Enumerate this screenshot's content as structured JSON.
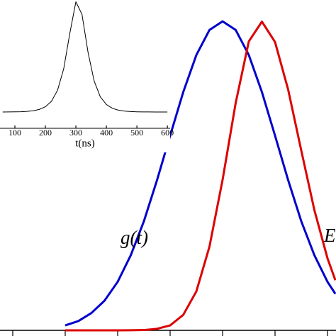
{
  "chart_data": [
    {
      "type": "line",
      "x": [
        1.0,
        1.25,
        1.5,
        1.75,
        2.0,
        2.25,
        2.5,
        2.75,
        3.0,
        3.25,
        3.5,
        3.75,
        4.0,
        4.25,
        4.5,
        4.75,
        5.0,
        5.25,
        5.5,
        5.75,
        6.0,
        6.15
      ],
      "series": [
        {
          "name": "g(t)",
          "color": "#0000cc",
          "values": [
            0.016,
            0.03,
            0.056,
            0.096,
            0.157,
            0.243,
            0.353,
            0.486,
            0.63,
            0.771,
            0.891,
            0.972,
            1.0,
            0.972,
            0.891,
            0.771,
            0.63,
            0.486,
            0.353,
            0.243,
            0.157,
            0.118
          ]
        },
        {
          "name": "E",
          "color": "#dd0000",
          "values": [
            0.0,
            0.0,
            0.0,
            0.0,
            0.0,
            0.0002,
            0.001,
            0.005,
            0.016,
            0.05,
            0.126,
            0.271,
            0.487,
            0.736,
            0.935,
            0.999,
            0.933,
            0.779,
            0.582,
            0.389,
            0.233,
            0.162
          ]
        }
      ],
      "xlim": [
        -0.243,
        6.162
      ],
      "ylim": [
        0,
        1.069
      ],
      "xticks": [
        0,
        1,
        2,
        3,
        4,
        5,
        6
      ]
    },
    {
      "type": "line",
      "xlabel": "t(ns)",
      "x": [
        60,
        80,
        100,
        120,
        140,
        160,
        180,
        200,
        220,
        240,
        260,
        280,
        300,
        320,
        340,
        360,
        380,
        400,
        420,
        440,
        460,
        480,
        500,
        520,
        540,
        560,
        580,
        600
      ],
      "series": [
        {
          "color": "#000000",
          "values": [
            0.0003,
            0.0006,
            0.0013,
            0.0027,
            0.0055,
            0.0113,
            0.023,
            0.047,
            0.096,
            0.195,
            0.385,
            0.701,
            0.984,
            0.872,
            0.53,
            0.276,
            0.136,
            0.067,
            0.033,
            0.016,
            0.0079,
            0.0039,
            0.0019,
            0.0009,
            0.0005,
            0.0002,
            0.0001,
            5e-05
          ]
        }
      ],
      "xlim": [
        51.2,
        609
      ],
      "ylim": [
        0,
        1.0
      ],
      "xticks": [
        100,
        200,
        300,
        400,
        500,
        600
      ]
    }
  ]
}
